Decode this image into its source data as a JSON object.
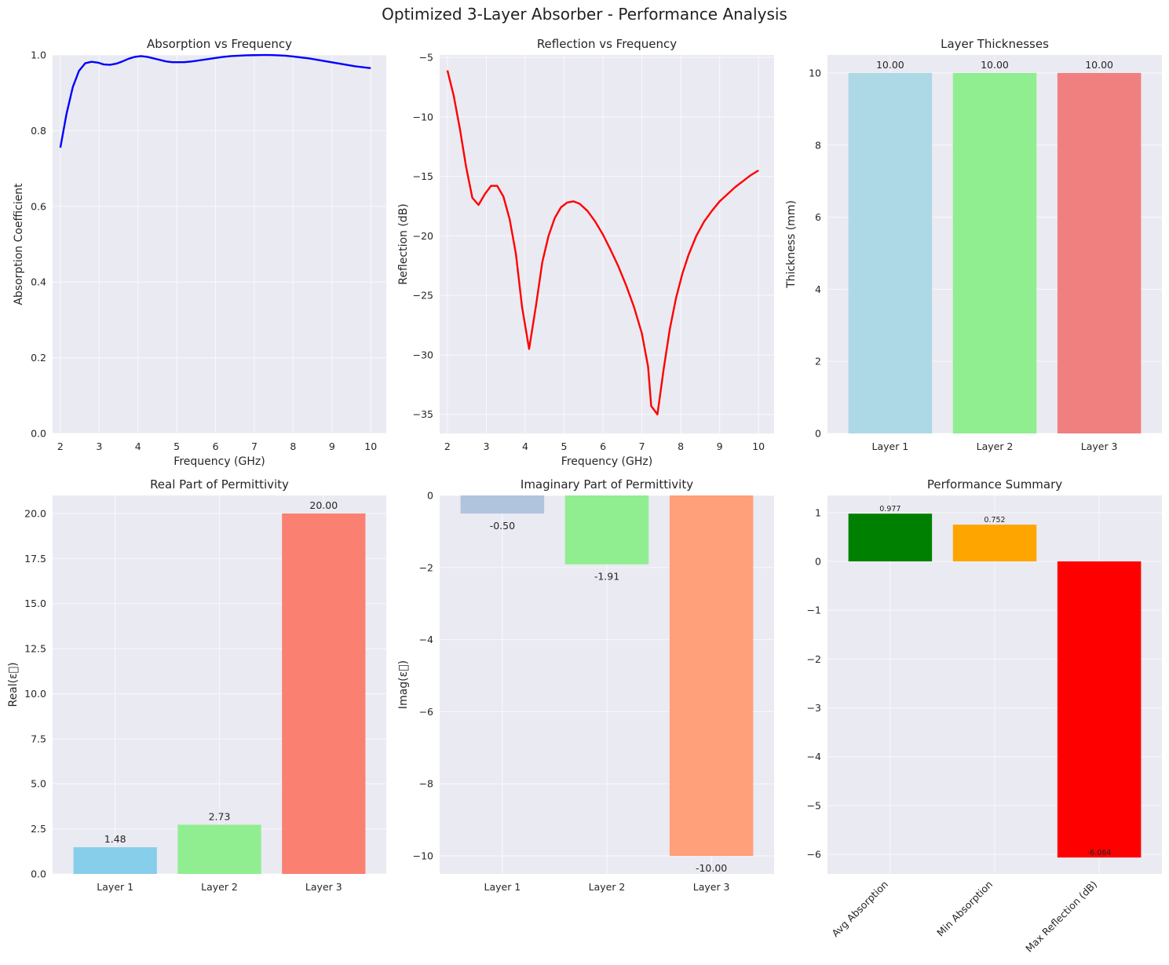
{
  "figure": {
    "title": "Optimized 3-Layer Absorber - Performance Analysis"
  },
  "chart_data": [
    {
      "id": "absorption",
      "type": "line",
      "title": "Absorption vs Frequency",
      "xlabel": "Frequency (GHz)",
      "ylabel": "Absorption Coefficient",
      "xlim": [
        1.8,
        10.4
      ],
      "ylim": [
        0,
        1.0
      ],
      "xticks": [
        2,
        3,
        4,
        5,
        6,
        7,
        8,
        9,
        10
      ],
      "yticks": [
        0.0,
        0.2,
        0.4,
        0.6,
        0.8,
        1.0
      ],
      "ytick_labels": [
        "0.0",
        "0.2",
        "0.4",
        "0.6",
        "0.8",
        "1.0"
      ],
      "color": "#0000ff",
      "grid": true,
      "x": [
        2.0,
        2.16,
        2.32,
        2.48,
        2.64,
        2.8,
        2.96,
        3.12,
        3.28,
        3.44,
        3.6,
        3.76,
        3.92,
        4.08,
        4.24,
        4.4,
        4.56,
        4.72,
        4.88,
        5.04,
        5.2,
        5.4,
        5.6,
        5.8,
        6.0,
        6.2,
        6.4,
        6.6,
        6.8,
        7.0,
        7.2,
        7.4,
        7.6,
        7.8,
        8.0,
        8.4,
        8.8,
        9.2,
        9.6,
        10.0
      ],
      "y": [
        0.755,
        0.845,
        0.915,
        0.958,
        0.978,
        0.982,
        0.98,
        0.975,
        0.974,
        0.977,
        0.983,
        0.99,
        0.995,
        0.997,
        0.995,
        0.991,
        0.987,
        0.983,
        0.981,
        0.981,
        0.981,
        0.983,
        0.986,
        0.989,
        0.992,
        0.995,
        0.997,
        0.998,
        0.999,
        0.9995,
        0.9998,
        0.9998,
        0.999,
        0.998,
        0.996,
        0.991,
        0.984,
        0.977,
        0.97,
        0.965
      ]
    },
    {
      "id": "reflection",
      "type": "line",
      "title": "Reflection vs Frequency",
      "xlabel": "Frequency (GHz)",
      "ylabel": "Reflection (dB)",
      "xlim": [
        1.8,
        10.4
      ],
      "ylim": [
        -36.6,
        -4.8
      ],
      "xticks": [
        2,
        3,
        4,
        5,
        6,
        7,
        8,
        9,
        10
      ],
      "yticks": [
        -35,
        -30,
        -25,
        -20,
        -15,
        -10,
        -5
      ],
      "ytick_labels": [
        "−35",
        "−30",
        "−25",
        "−20",
        "−15",
        "−10",
        "−5"
      ],
      "color": "#ff0000",
      "grid": true,
      "x": [
        2.0,
        2.16,
        2.32,
        2.48,
        2.64,
        2.8,
        2.96,
        3.12,
        3.28,
        3.44,
        3.6,
        3.76,
        3.92,
        4.1,
        4.28,
        4.44,
        4.6,
        4.76,
        4.92,
        5.08,
        5.24,
        5.4,
        5.6,
        5.8,
        6.0,
        6.2,
        6.4,
        6.6,
        6.8,
        7.0,
        7.16,
        7.24,
        7.4,
        7.56,
        7.72,
        7.88,
        8.04,
        8.2,
        8.4,
        8.6,
        8.8,
        9.0,
        9.2,
        9.4,
        9.6,
        9.8,
        10.0
      ],
      "y": [
        -6.1,
        -8.2,
        -11.0,
        -14.2,
        -16.8,
        -17.4,
        -16.5,
        -15.8,
        -15.8,
        -16.7,
        -18.6,
        -21.5,
        -26.0,
        -29.5,
        -25.8,
        -22.2,
        -20.0,
        -18.5,
        -17.6,
        -17.2,
        -17.1,
        -17.3,
        -17.9,
        -18.8,
        -19.9,
        -21.2,
        -22.6,
        -24.2,
        -26.0,
        -28.2,
        -31.0,
        -34.3,
        -35.0,
        -31.2,
        -27.8,
        -25.2,
        -23.2,
        -21.6,
        -20.0,
        -18.8,
        -17.9,
        -17.1,
        -16.5,
        -15.9,
        -15.4,
        -14.9,
        -14.5
      ]
    },
    {
      "id": "thickness",
      "type": "bar",
      "title": "Layer Thicknesses",
      "xlabel": "",
      "ylabel": "Thickness (mm)",
      "categories": [
        "Layer 1",
        "Layer 2",
        "Layer 3"
      ],
      "values": [
        10.0,
        10.0,
        10.0
      ],
      "data_labels": [
        "10.00",
        "10.00",
        "10.00"
      ],
      "colors": [
        "#add8e6",
        "#90ee90",
        "#f08080"
      ],
      "ylim": [
        0,
        10.5
      ],
      "yticks": [
        0,
        2,
        4,
        6,
        8,
        10
      ],
      "ytick_labels": [
        "0",
        "2",
        "4",
        "6",
        "8",
        "10"
      ],
      "grid": true
    },
    {
      "id": "real_perm",
      "type": "bar",
      "title": "Real Part of Permittivity",
      "xlabel": "",
      "ylabel": "Real(ε\u0000)",
      "categories": [
        "Layer 1",
        "Layer 2",
        "Layer 3"
      ],
      "values": [
        1.48,
        2.73,
        20.0
      ],
      "data_labels": [
        "1.48",
        "2.73",
        "20.00"
      ],
      "colors": [
        "#87ceeb",
        "#90ee90",
        "#fa8072"
      ],
      "ylim": [
        0,
        21.0
      ],
      "yticks": [
        0,
        2.5,
        5,
        7.5,
        10,
        12.5,
        15,
        17.5,
        20
      ],
      "ytick_labels": [
        "0.0",
        "2.5",
        "5.0",
        "7.5",
        "10.0",
        "12.5",
        "15.0",
        "17.5",
        "20.0"
      ],
      "grid": true
    },
    {
      "id": "imag_perm",
      "type": "bar",
      "title": "Imaginary Part of Permittivity",
      "xlabel": "",
      "ylabel": "Imag(ε\u0000)",
      "categories": [
        "Layer 1",
        "Layer 2",
        "Layer 3"
      ],
      "values": [
        -0.5,
        -1.91,
        -10.0
      ],
      "data_labels": [
        "-0.50",
        "-1.91",
        "-10.00"
      ],
      "colors": [
        "#b0c4de",
        "#90ee90",
        "#ffa07a"
      ],
      "ylim": [
        -10.5,
        0
      ],
      "yticks": [
        -10,
        -8,
        -6,
        -4,
        -2,
        0
      ],
      "ytick_labels": [
        "−10",
        "−8",
        "−6",
        "−4",
        "−2",
        "0"
      ],
      "grid": true
    },
    {
      "id": "summary",
      "type": "bar",
      "title": "Performance Summary",
      "xlabel": "",
      "ylabel": "",
      "categories": [
        "Avg Absorption",
        "Min Absorption",
        "Max Reflection (dB)"
      ],
      "values": [
        0.977,
        0.752,
        -6.064
      ],
      "data_labels": [
        "0.977",
        "0.752",
        "-6.064"
      ],
      "colors": [
        "#008000",
        "#ffa500",
        "#ff0000"
      ],
      "ylim": [
        -6.4,
        1.35
      ],
      "yticks": [
        -6,
        -5,
        -4,
        -3,
        -2,
        -1,
        0,
        1
      ],
      "ytick_labels": [
        "−6",
        "−5",
        "−4",
        "−3",
        "−2",
        "−1",
        "0",
        "1"
      ],
      "rotated_category_labels": true,
      "grid": true
    }
  ]
}
